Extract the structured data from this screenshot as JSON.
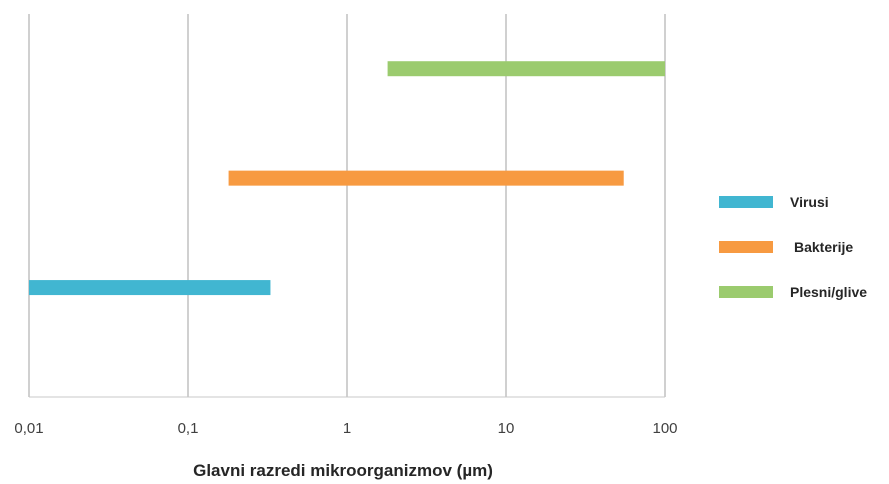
{
  "chart_data": {
    "type": "bar",
    "orientation": "horizontal-range",
    "x_scale": "log",
    "xlim": [
      0.01,
      100
    ],
    "x_ticks": [
      0.01,
      0.1,
      1,
      10,
      100
    ],
    "x_tick_labels": [
      "0,01",
      "0,1",
      "1",
      "10",
      "100"
    ],
    "xlabel": "Glavni razredi mikroorganizmov (µm)",
    "grid": "vertical",
    "legend_position": "right",
    "series": [
      {
        "name": "Virusi",
        "range": [
          0.01,
          0.33
        ],
        "color": "#41B6D1"
      },
      {
        "name": "Bakterije",
        "range": [
          0.18,
          55
        ],
        "color": "#F79A41"
      },
      {
        "name": "Plesni/glive",
        "range": [
          1.8,
          100
        ],
        "color": "#9BCB6E"
      }
    ]
  }
}
